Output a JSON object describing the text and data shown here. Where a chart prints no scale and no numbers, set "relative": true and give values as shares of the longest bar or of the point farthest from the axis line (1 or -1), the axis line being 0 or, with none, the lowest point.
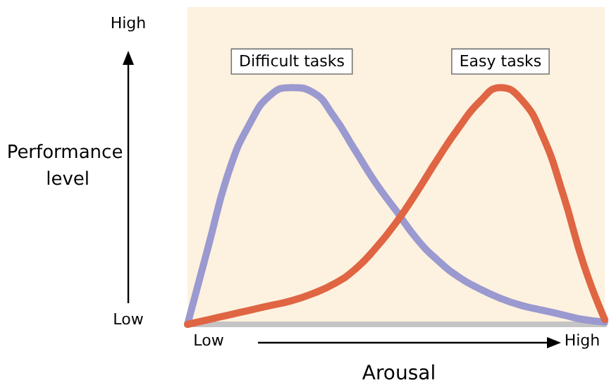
{
  "chart_data": {
    "type": "line",
    "relative": true,
    "xlabel": "Arousal",
    "ylabel": "Performance level",
    "categories": [
      null,
      null,
      null,
      null,
      null,
      null,
      null,
      null,
      null,
      null,
      null,
      null,
      null,
      null,
      null,
      null,
      null,
      null,
      null,
      null,
      null
    ],
    "series": [
      {
        "name": "Difficult tasks",
        "color": "#9a99d0",
        "values": [
          0,
          0.33,
          0.65,
          0.85,
          0.97,
          1,
          0.98,
          0.88,
          0.74,
          0.6,
          0.48,
          0.36,
          0.27,
          0.2,
          0.15,
          0.11,
          0.08,
          0.06,
          0.04,
          0.02,
          0.01
        ]
      },
      {
        "name": "Easy tasks",
        "color": "#df6543",
        "values": [
          0,
          0.02,
          0.04,
          0.06,
          0.08,
          0.1,
          0.13,
          0.17,
          0.23,
          0.32,
          0.43,
          0.56,
          0.7,
          0.83,
          0.94,
          1,
          0.95,
          0.8,
          0.55,
          0.25,
          0.02
        ]
      }
    ],
    "annotations": [
      "High",
      "Low",
      "Low",
      "High"
    ],
    "grid": false,
    "legend": false,
    "marker": "none",
    "line_style": "solid"
  }
}
